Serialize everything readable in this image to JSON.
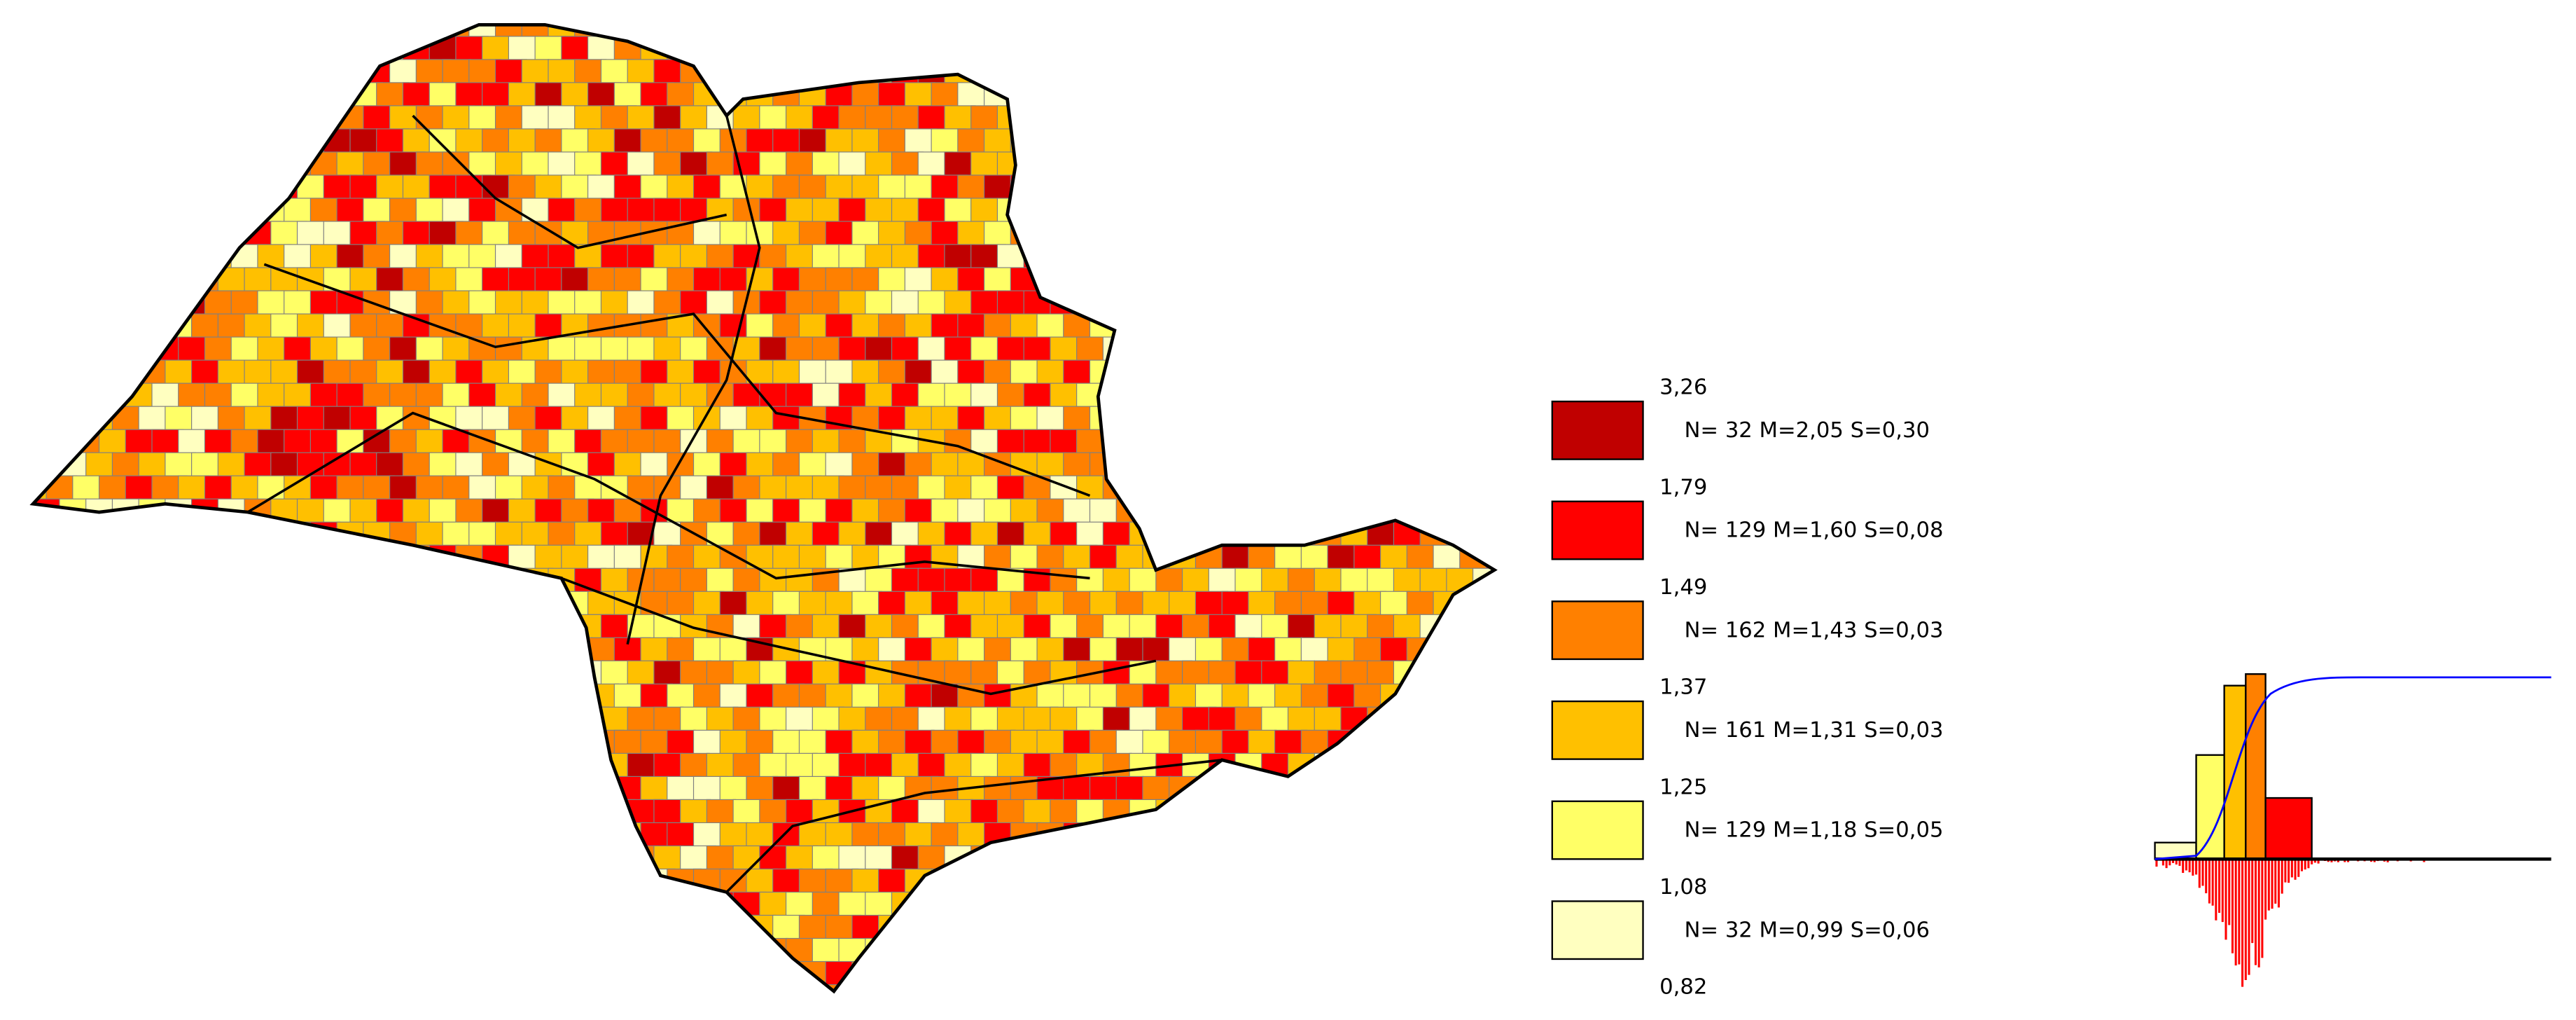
{
  "legend": {
    "classes": [
      {
        "upper": "3,26",
        "stats": "N= 32  M=2,05  S=0,30"
      },
      {
        "upper": "1,79",
        "stats": "N= 129  M=1,60  S=0,08"
      },
      {
        "upper": "1,49",
        "stats": "N= 162  M=1,43  S=0,03"
      },
      {
        "upper": "1,37",
        "stats": "N= 161  M=1,31  S=0,03"
      },
      {
        "upper": "1,25",
        "stats": "N= 129  M=1,18  S=0,05"
      },
      {
        "upper": "1,08",
        "stats": "N= 32  M=0,99  S=0,06"
      }
    ],
    "lower": "0,82"
  }
}
